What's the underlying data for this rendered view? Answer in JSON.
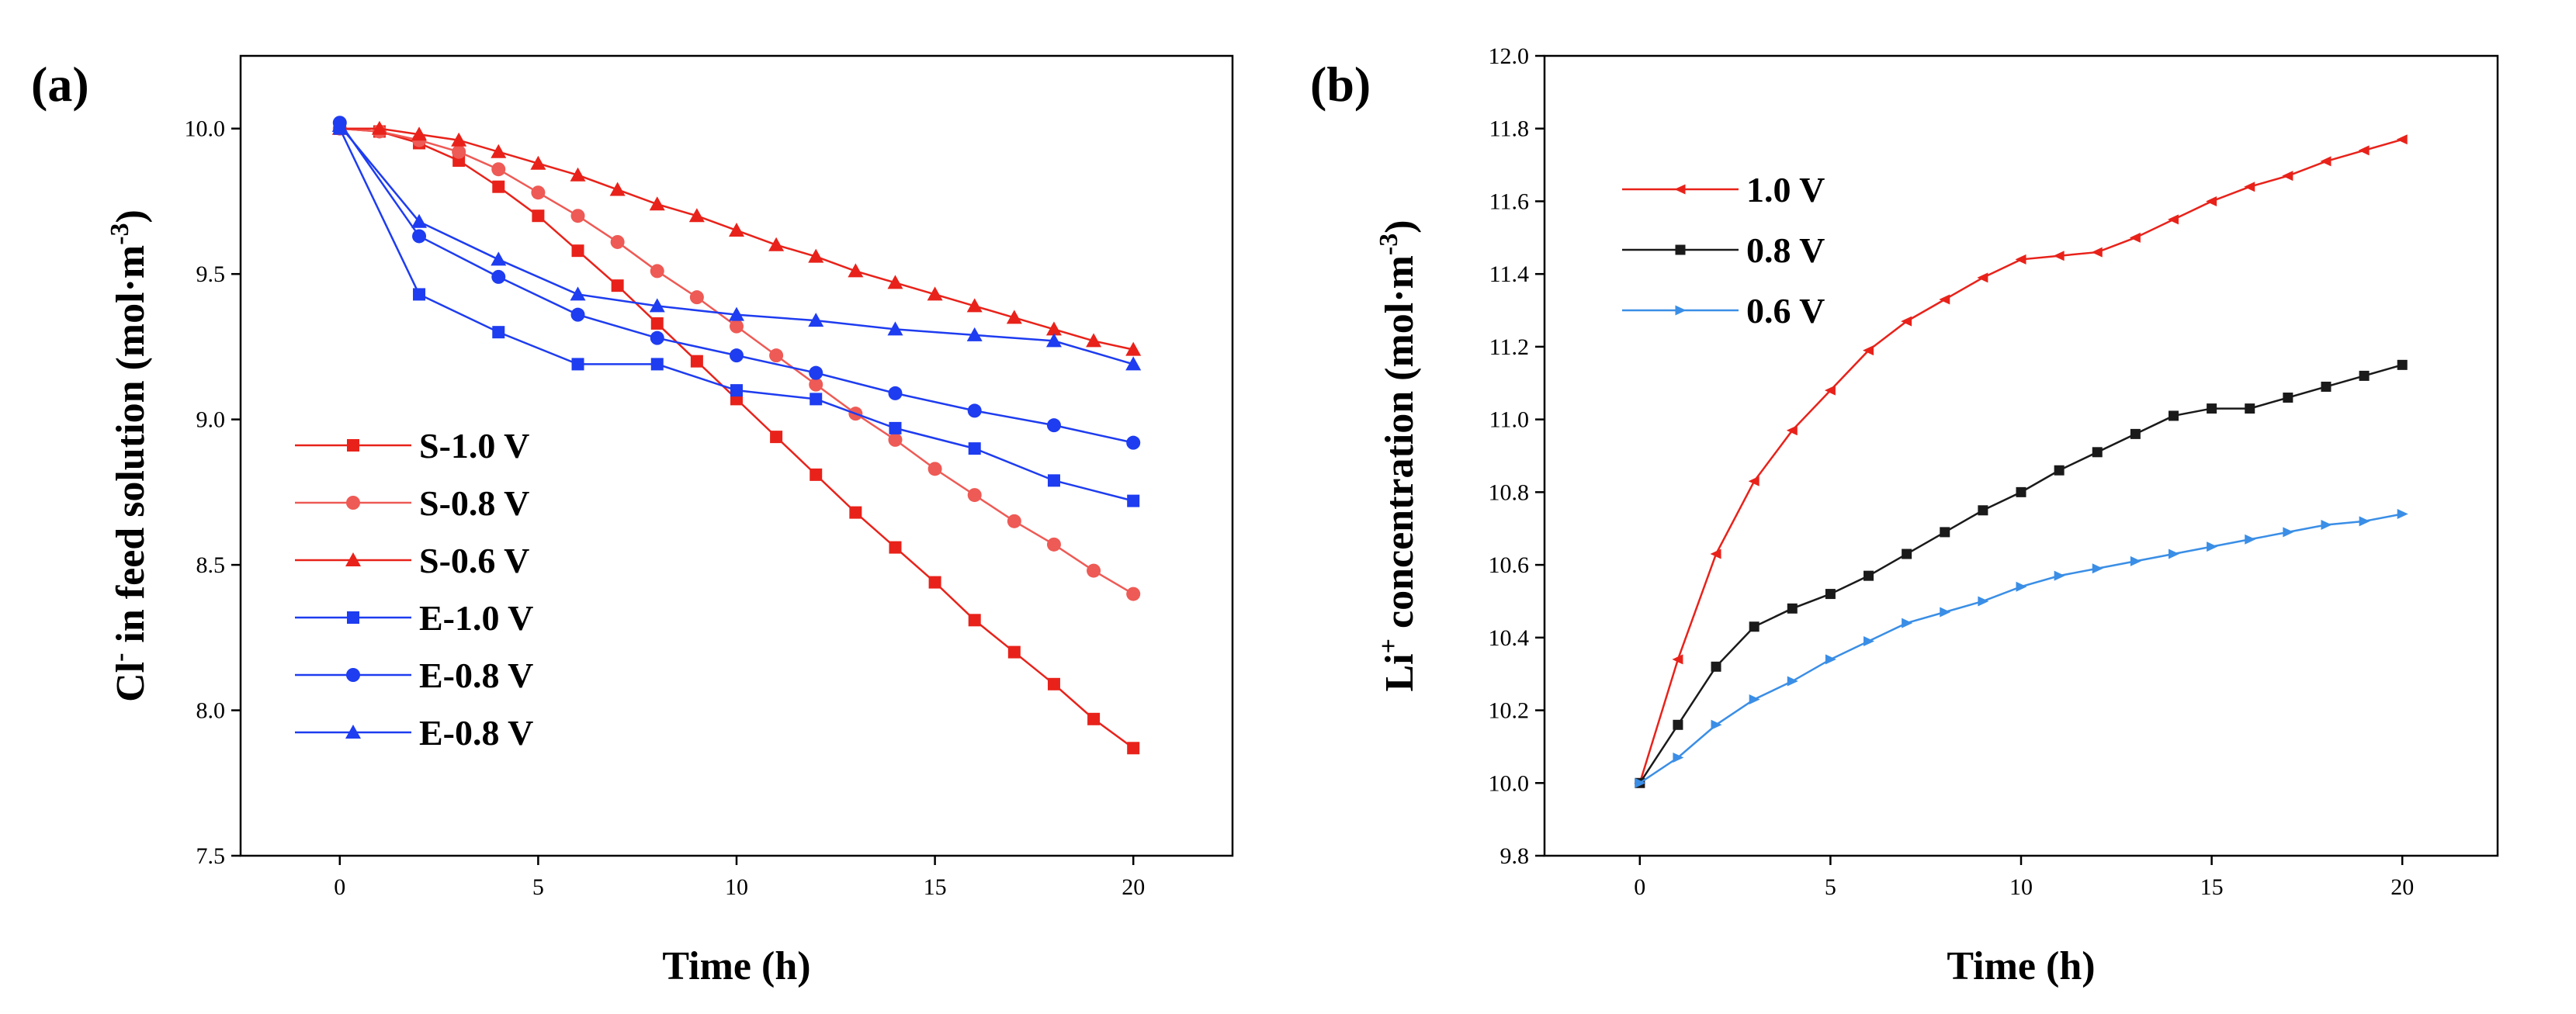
{
  "chart_data": [
    {
      "type": "line",
      "panel_label": "(a)",
      "xlabel": "Time (h)",
      "ylabel_main": "Cl",
      "ylabel_sup": "-",
      "ylabel_rest": " in feed solution (mol·m",
      "ylabel_unit_sup": "-3",
      "ylabel_end": ")",
      "xlim": [
        -2.5,
        22.5
      ],
      "ylim": [
        7.5,
        10.25
      ],
      "xticks": [
        0,
        5,
        10,
        15,
        20
      ],
      "yticks": [
        "7.5",
        "8.0",
        "8.5",
        "9.0",
        "9.5",
        "10.0"
      ],
      "grid": false,
      "legend_position": "bottom-left",
      "series": [
        {
          "name": "S-1.0 V",
          "color": "#e8221a",
          "marker": "square",
          "x": [
            0,
            1,
            2,
            3,
            4,
            5,
            6,
            7,
            8,
            9,
            10,
            11,
            12,
            13,
            14,
            15,
            16,
            17,
            18,
            19,
            20
          ],
          "y": [
            10.0,
            9.99,
            9.95,
            9.89,
            9.8,
            9.7,
            9.58,
            9.46,
            9.33,
            9.2,
            9.07,
            8.94,
            8.81,
            8.68,
            8.56,
            8.44,
            8.31,
            8.2,
            8.09,
            7.97,
            7.87
          ]
        },
        {
          "name": "S-0.8 V",
          "color": "#ee5a55",
          "marker": "circle",
          "x": [
            0,
            1,
            2,
            3,
            4,
            5,
            6,
            7,
            8,
            9,
            10,
            11,
            12,
            13,
            14,
            15,
            16,
            17,
            18,
            19,
            20
          ],
          "y": [
            10.0,
            9.99,
            9.96,
            9.92,
            9.86,
            9.78,
            9.7,
            9.61,
            9.51,
            9.42,
            9.32,
            9.22,
            9.12,
            9.02,
            8.93,
            8.83,
            8.74,
            8.65,
            8.57,
            8.48,
            8.4
          ]
        },
        {
          "name": "S-0.6 V",
          "color": "#e8221a",
          "marker": "triangle-up",
          "x": [
            0,
            1,
            2,
            3,
            4,
            5,
            6,
            7,
            8,
            9,
            10,
            11,
            12,
            13,
            14,
            15,
            16,
            17,
            18,
            19,
            20
          ],
          "y": [
            10.0,
            10.0,
            9.98,
            9.96,
            9.92,
            9.88,
            9.84,
            9.79,
            9.74,
            9.7,
            9.65,
            9.6,
            9.56,
            9.51,
            9.47,
            9.43,
            9.39,
            9.35,
            9.31,
            9.27,
            9.24
          ]
        },
        {
          "name": "E-1.0 V",
          "color": "#1e3cf0",
          "marker": "square",
          "x": [
            0,
            2,
            4,
            6,
            8,
            10,
            12,
            14,
            16,
            18,
            20
          ],
          "y": [
            10.0,
            9.43,
            9.3,
            9.19,
            9.19,
            9.1,
            9.07,
            8.97,
            8.9,
            8.79,
            8.72
          ]
        },
        {
          "name": "E-0.8 V",
          "color": "#1e3cf0",
          "marker": "circle",
          "x": [
            0,
            2,
            4,
            6,
            8,
            10,
            12,
            14,
            16,
            18,
            20
          ],
          "y": [
            10.02,
            9.63,
            9.49,
            9.36,
            9.28,
            9.22,
            9.16,
            9.09,
            9.03,
            8.98,
            8.92
          ]
        },
        {
          "name": "E-0.8 V",
          "color": "#1e3cf0",
          "marker": "triangle-up",
          "x": [
            0,
            2,
            4,
            6,
            8,
            10,
            12,
            14,
            16,
            18,
            20
          ],
          "y": [
            10.01,
            9.68,
            9.55,
            9.43,
            9.39,
            9.36,
            9.34,
            9.31,
            9.29,
            9.27,
            9.19
          ]
        }
      ]
    },
    {
      "type": "line",
      "panel_label": "(b)",
      "xlabel": "Time (h)",
      "ylabel_main": "Li",
      "ylabel_sup": "+",
      "ylabel_rest": " concentration (mol·m",
      "ylabel_unit_sup": "-3",
      "ylabel_end": ")",
      "xlim": [
        -2.5,
        22.5
      ],
      "ylim": [
        9.8,
        12.0
      ],
      "xticks": [
        0,
        5,
        10,
        15,
        20
      ],
      "yticks": [
        "9.8",
        "10.0",
        "10.2",
        "10.4",
        "10.6",
        "10.8",
        "11.0",
        "11.2",
        "11.4",
        "11.6",
        "11.8",
        "12.0"
      ],
      "grid": false,
      "legend_position": "top-left",
      "series": [
        {
          "name": "1.0 V",
          "color": "#e8221a",
          "marker": "triangle-left",
          "x": [
            0,
            1,
            2,
            3,
            4,
            5,
            6,
            7,
            8,
            9,
            10,
            11,
            12,
            13,
            14,
            15,
            16,
            17,
            18,
            19,
            20
          ],
          "y": [
            10.0,
            10.34,
            10.63,
            10.83,
            10.97,
            11.08,
            11.19,
            11.27,
            11.33,
            11.39,
            11.44,
            11.45,
            11.46,
            11.5,
            11.55,
            11.6,
            11.64,
            11.67,
            11.71,
            11.74,
            11.77
          ]
        },
        {
          "name": "0.8 V",
          "color": "#1a1a1a",
          "marker": "square",
          "x": [
            0,
            1,
            2,
            3,
            4,
            5,
            6,
            7,
            8,
            9,
            10,
            11,
            12,
            13,
            14,
            15,
            16,
            17,
            18,
            19,
            20
          ],
          "y": [
            10.0,
            10.16,
            10.32,
            10.43,
            10.48,
            10.52,
            10.57,
            10.63,
            10.69,
            10.75,
            10.8,
            10.86,
            10.91,
            10.96,
            11.01,
            11.03,
            11.03,
            11.06,
            11.09,
            11.12,
            11.15
          ]
        },
        {
          "name": "0.6 V",
          "color": "#3a8ee6",
          "marker": "triangle-right",
          "x": [
            0,
            1,
            2,
            3,
            4,
            5,
            6,
            7,
            8,
            9,
            10,
            11,
            12,
            13,
            14,
            15,
            16,
            17,
            18,
            19,
            20
          ],
          "y": [
            10.0,
            10.07,
            10.16,
            10.23,
            10.28,
            10.34,
            10.39,
            10.44,
            10.47,
            10.5,
            10.54,
            10.57,
            10.59,
            10.61,
            10.63,
            10.65,
            10.67,
            10.69,
            10.71,
            10.72,
            10.74
          ]
        }
      ]
    }
  ]
}
